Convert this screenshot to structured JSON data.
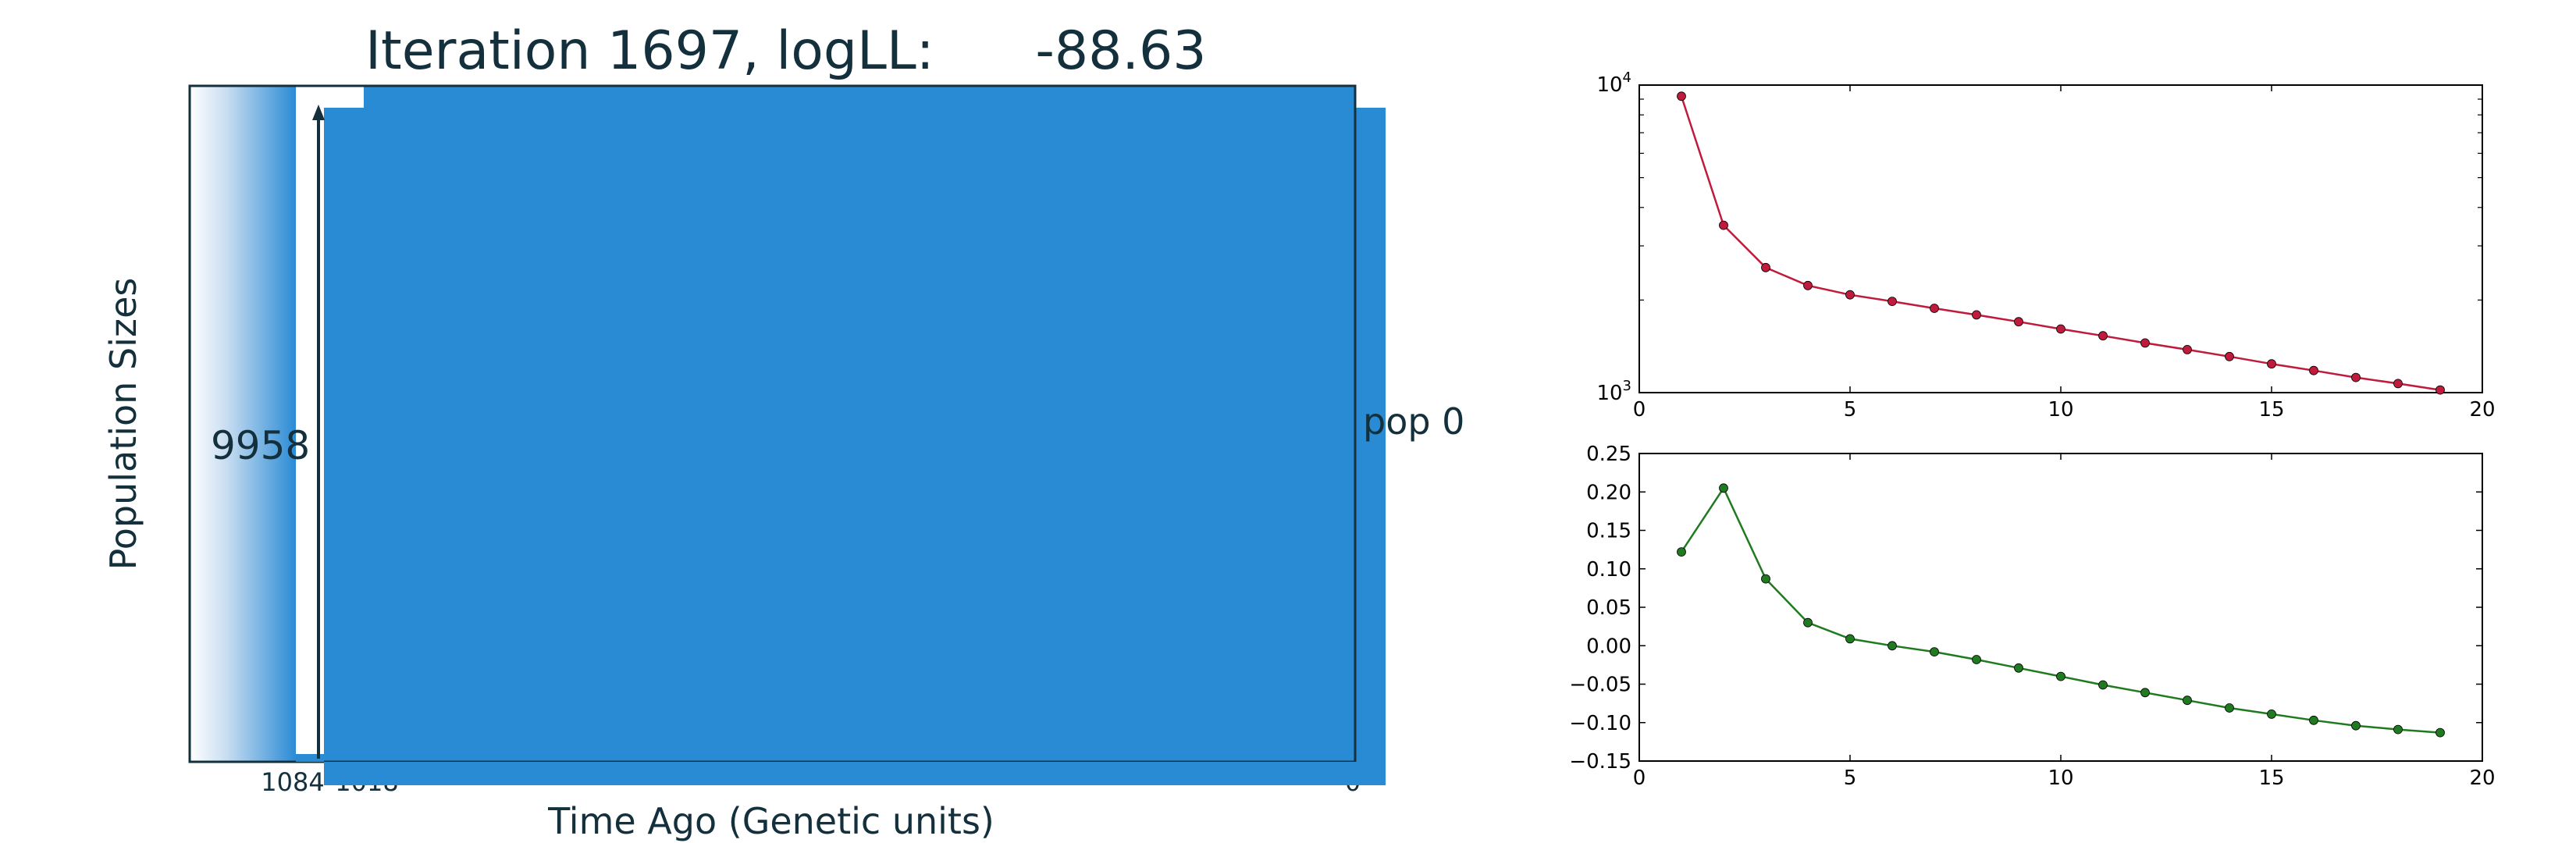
{
  "chart_data": [
    {
      "type": "area",
      "title": "Iteration 1697, logLL:      -88.63",
      "xlabel": "Time Ago (Genetic units)",
      "ylabel": "Population Sizes",
      "population_label": "pop 0",
      "size_label": "9958",
      "x_tick_labels": [
        "1084",
        "1018",
        "0"
      ],
      "fill_color": "#2a8bd5",
      "text_color": "#13303c"
    },
    {
      "type": "line",
      "yscale": "log",
      "x": [
        1,
        2,
        3,
        4,
        5,
        6,
        7,
        8,
        9,
        10,
        11,
        12,
        13,
        14,
        15,
        16,
        17,
        18,
        19
      ],
      "values": [
        9200,
        3500,
        2550,
        2230,
        2080,
        1980,
        1880,
        1790,
        1700,
        1610,
        1530,
        1450,
        1380,
        1310,
        1240,
        1180,
        1120,
        1070,
        1020
      ],
      "xlim": [
        0,
        20
      ],
      "ylim": [
        1000,
        10000
      ],
      "x_ticks": [
        "0",
        "5",
        "10",
        "15",
        "20"
      ],
      "y_ticks": [
        {
          "base": "10",
          "exp": "4"
        },
        {
          "base": "10",
          "exp": "3"
        }
      ],
      "color": "#c01a3c"
    },
    {
      "type": "line",
      "x": [
        1,
        2,
        3,
        4,
        5,
        6,
        7,
        8,
        9,
        10,
        11,
        12,
        13,
        14,
        15,
        16,
        17,
        18,
        19
      ],
      "values": [
        0.122,
        0.205,
        0.087,
        0.03,
        0.009,
        0.0,
        -0.008,
        -0.018,
        -0.029,
        -0.04,
        -0.051,
        -0.061,
        -0.071,
        -0.081,
        -0.089,
        -0.097,
        -0.104,
        -0.109,
        -0.113
      ],
      "xlim": [
        0,
        20
      ],
      "ylim": [
        -0.15,
        0.25
      ],
      "x_ticks": [
        "0",
        "5",
        "10",
        "15",
        "20"
      ],
      "y_ticks": [
        "0.25",
        "0.20",
        "0.15",
        "0.10",
        "0.05",
        "0.00",
        "−0.05",
        "−0.10",
        "−0.15"
      ],
      "color": "#207a20"
    }
  ]
}
